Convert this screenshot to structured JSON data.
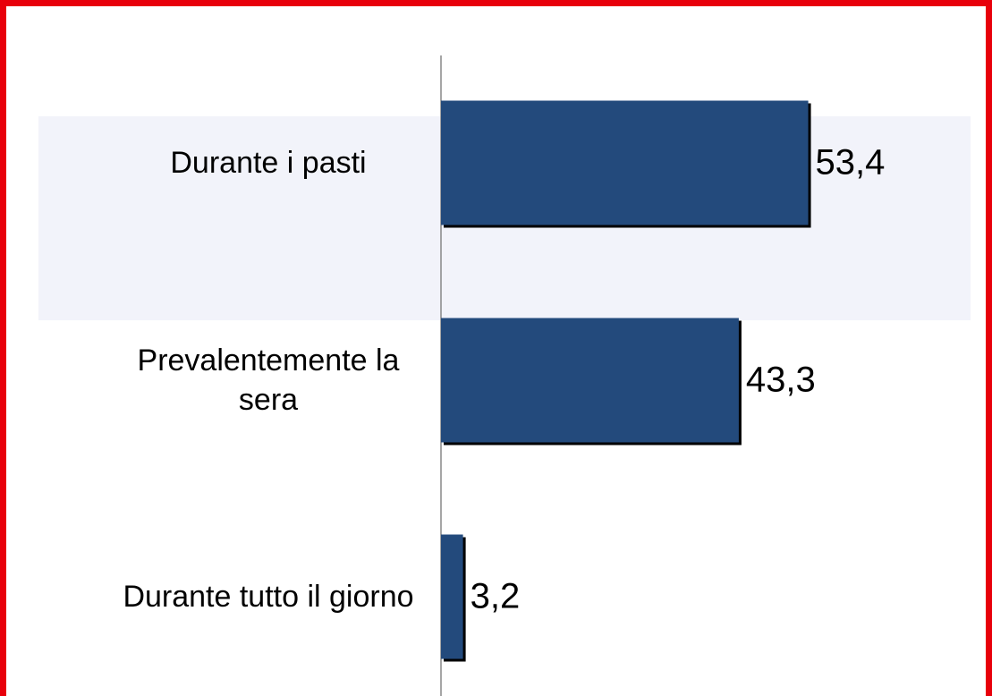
{
  "chart_data": {
    "type": "barh",
    "categories": [
      "Durante i pasti",
      "Prevalentemente la sera",
      "Durante tutto il giorno"
    ],
    "values": [
      53.4,
      43.3,
      3.2
    ],
    "value_labels": [
      "53,4",
      "43,3",
      "3,2"
    ],
    "color": "#234a7c",
    "xlim": [
      0,
      77
    ]
  }
}
